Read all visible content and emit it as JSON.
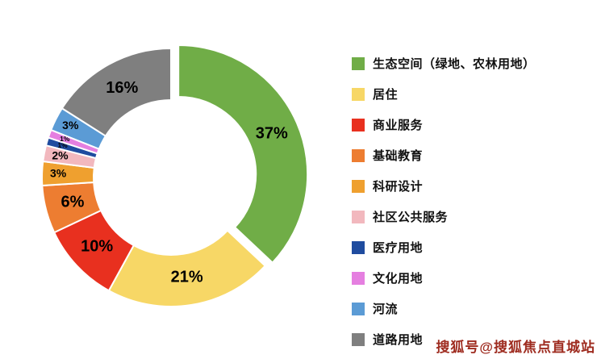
{
  "chart_data": {
    "type": "pie",
    "subtype": "donut",
    "title": "",
    "legend_position": "right",
    "value_label_format": "{v}%",
    "segments": [
      {
        "label": "生态空间（绿地、农林用地）",
        "value": 37,
        "color": "#70AD47",
        "exploded": true
      },
      {
        "label": "居住",
        "value": 21,
        "color": "#F7D766",
        "exploded": false
      },
      {
        "label": "商业服务",
        "value": 10,
        "color": "#E8301F",
        "exploded": false
      },
      {
        "label": "基础教育",
        "value": 6,
        "color": "#ED7D31",
        "exploded": false
      },
      {
        "label": "科研设计",
        "value": 3,
        "color": "#EFA02F",
        "exploded": false
      },
      {
        "label": "社区公共服务",
        "value": 2,
        "color": "#F2B8BE",
        "exploded": false
      },
      {
        "label": "医疗用地",
        "value": 1,
        "color": "#1F4C9F",
        "exploded": false
      },
      {
        "label": "文化用地",
        "value": 1,
        "color": "#E57FE0",
        "exploded": false
      },
      {
        "label": "河流",
        "value": 3,
        "color": "#5B9BD5",
        "exploded": false
      },
      {
        "label": "道路用地",
        "value": 16,
        "color": "#7F7F7F",
        "exploded": false
      }
    ]
  },
  "watermark": "搜狐号@搜狐焦点直城站"
}
